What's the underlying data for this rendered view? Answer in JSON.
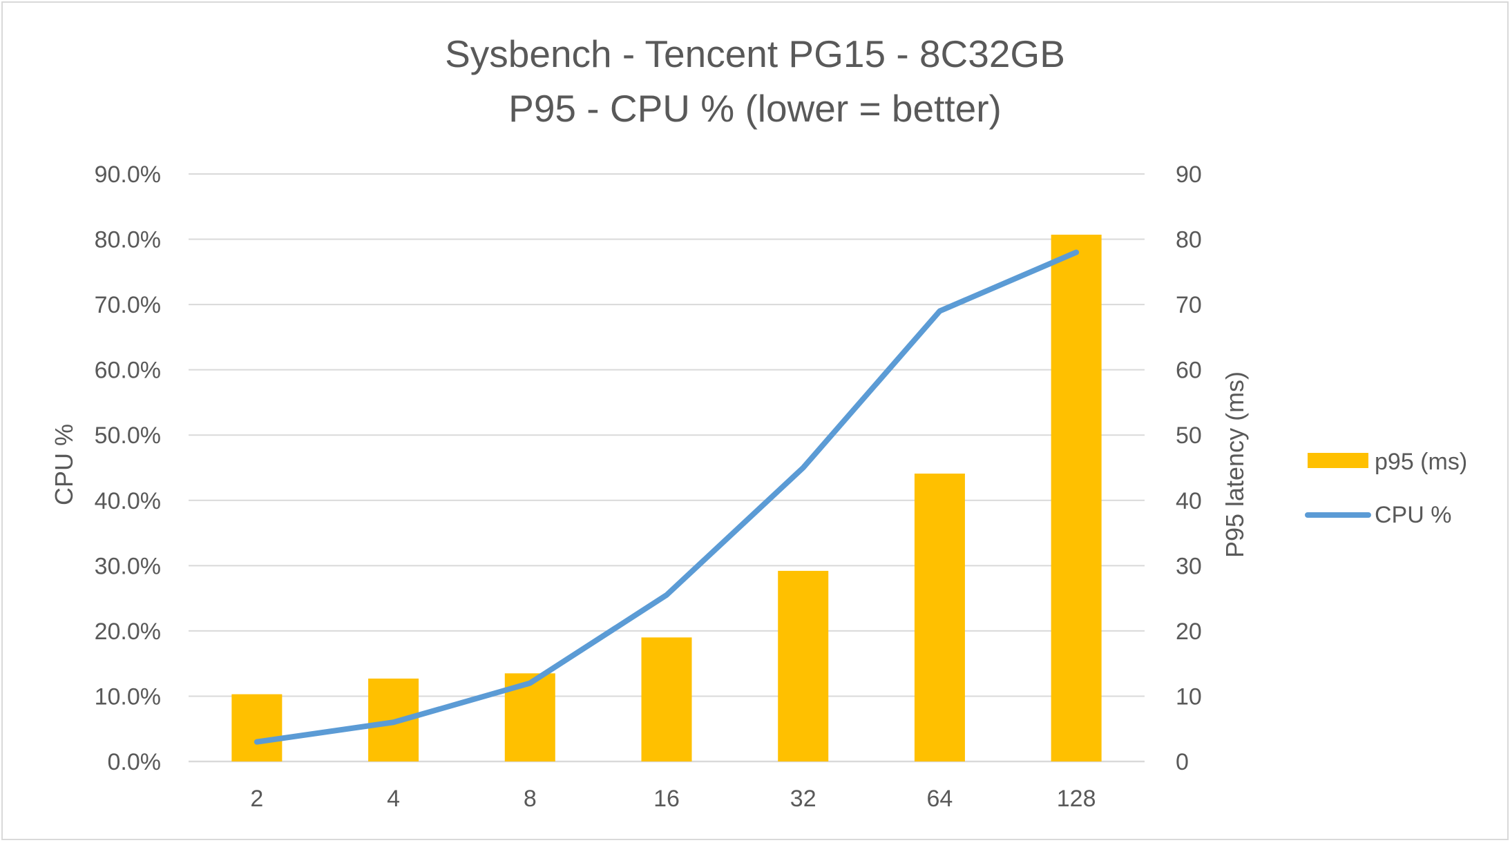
{
  "chart_data": {
    "type": "bar",
    "title": [
      "Sysbench - Tencent PG15 - 8C32GB",
      "P95  - CPU % (lower = better)"
    ],
    "categories": [
      "2",
      "4",
      "8",
      "16",
      "32",
      "64",
      "128"
    ],
    "ylabel": "CPU %",
    "y2label": "P95 latency (ms)",
    "ylim": [
      0,
      0.9
    ],
    "y2lim": [
      0,
      90
    ],
    "yticks": [
      "0.0%",
      "10.0%",
      "20.0%",
      "30.0%",
      "40.0%",
      "50.0%",
      "60.0%",
      "70.0%",
      "80.0%",
      "90.0%"
    ],
    "y2ticks": [
      "0",
      "10",
      "20",
      "30",
      "40",
      "50",
      "60",
      "70",
      "80",
      "90"
    ],
    "grid": true,
    "legend_position": "right",
    "series": [
      {
        "name": "p95 (ms)",
        "type": "bar",
        "axis": "right",
        "color": "#FFC000",
        "values": [
          10.3,
          12.7,
          13.5,
          19.0,
          29.2,
          44.1,
          80.7
        ]
      },
      {
        "name": "CPU %",
        "type": "line",
        "axis": "left",
        "color": "#5B9BD5",
        "values": [
          0.03,
          0.06,
          0.12,
          0.255,
          0.45,
          0.69,
          0.78
        ]
      }
    ]
  }
}
